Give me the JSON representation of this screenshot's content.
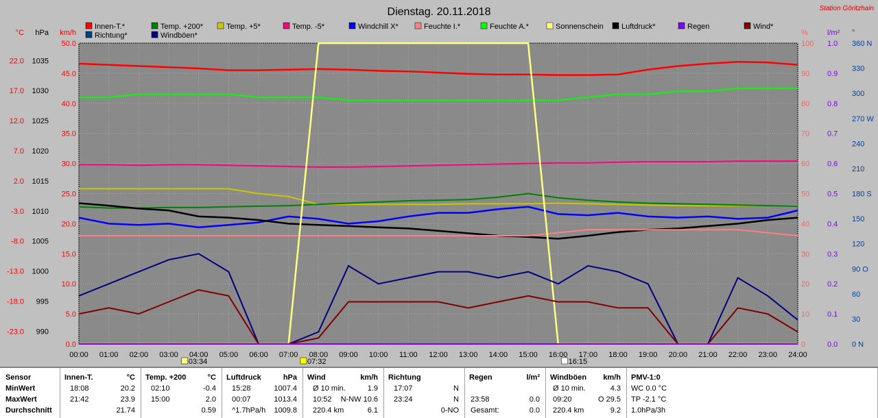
{
  "title": "Dienstag. 20.11.2018",
  "station": "Station Göritzhain",
  "legend": [
    {
      "label": "Innen-T.*",
      "color": "#ff0000"
    },
    {
      "label": "Temp. +200*",
      "color": "#008000"
    },
    {
      "label": "Temp. +5*",
      "color": "#c8c800"
    },
    {
      "label": "Temp. -5*",
      "color": "#ff0080"
    },
    {
      "label": "Windchill X*",
      "color": "#0000ff"
    },
    {
      "label": "Feuchte I.*",
      "color": "#ff8080"
    },
    {
      "label": "Feuchte A.*",
      "color": "#00ff00"
    },
    {
      "label": "Sonnenschein",
      "color": "#ffff80"
    },
    {
      "label": "Luftdruck*",
      "color": "#000000"
    },
    {
      "label": "Regen",
      "color": "#8000ff"
    },
    {
      "label": "Wind*",
      "color": "#800000"
    },
    {
      "label": "Richtung*",
      "color": "#004080"
    },
    {
      "label": "Windböen*",
      "color": "#000080"
    }
  ],
  "axes": {
    "temp": {
      "unit": "°C",
      "ticks": [
        "22.0",
        "17.0",
        "12.0",
        "7.0",
        "2.0",
        "-3.0",
        "-8.0",
        "-13.0",
        "-18.0",
        "-23.0"
      ],
      "color": "#ff0000"
    },
    "pressure": {
      "unit": "hPa",
      "ticks": [
        "1035",
        "1030",
        "1025",
        "1020",
        "1015",
        "1010",
        "1005",
        "1000",
        "995",
        "990"
      ],
      "color": "#000000"
    },
    "wind": {
      "unit": "km/h",
      "ticks": [
        "50.0",
        "45.0",
        "40.0",
        "35.0",
        "30.0",
        "25.0",
        "20.0",
        "15.0",
        "10.0",
        "5.0",
        "0.0"
      ],
      "color": "#ff0000"
    },
    "humidity": {
      "unit": "%",
      "ticks": [
        "100",
        "90",
        "80",
        "70",
        "60",
        "50",
        "40",
        "30",
        "20",
        "10",
        "0"
      ],
      "color": "#ff6060"
    },
    "rain": {
      "unit": "l/m²",
      "ticks": [
        "1.0",
        "0.9",
        "0.8",
        "0.7",
        "0.6",
        "0.5",
        "0.4",
        "0.3",
        "0.2",
        "0.1",
        "0.0"
      ],
      "color": "#8000ff"
    },
    "direction": {
      "unit": "°",
      "ticks": [
        "360 N",
        "330",
        "300",
        "270 W",
        "240",
        "210",
        "180 S",
        "150",
        "120",
        "90 O",
        "60",
        "30",
        "0 N"
      ],
      "color": "#0040a0"
    },
    "x_ticks": [
      "00:00",
      "01:00",
      "02:00",
      "03:00",
      "04:00",
      "05:00",
      "06:00",
      "07:00",
      "08:00",
      "09:00",
      "10:00",
      "11:00",
      "12:00",
      "13:00",
      "14:00",
      "15:00",
      "16:00",
      "17:00",
      "18:00",
      "19:00",
      "20:00",
      "21:00",
      "22:00",
      "23:00",
      "24:00"
    ]
  },
  "markers": {
    "moonset": "03:34",
    "sunrise": "07:32",
    "moonrise": "16:15"
  },
  "chart_data": {
    "type": "line",
    "x": [
      "00:00",
      "01:00",
      "02:00",
      "03:00",
      "04:00",
      "05:00",
      "06:00",
      "07:00",
      "08:00",
      "09:00",
      "10:00",
      "11:00",
      "12:00",
      "13:00",
      "14:00",
      "15:00",
      "16:00",
      "17:00",
      "18:00",
      "19:00",
      "20:00",
      "21:00",
      "22:00",
      "23:00",
      "24:00"
    ],
    "series": [
      {
        "name": "Innen-T.*",
        "axis": "temp",
        "values": [
          23.6,
          23.4,
          23.2,
          23.0,
          22.8,
          22.5,
          22.5,
          22.6,
          22.7,
          22.6,
          22.4,
          22.3,
          22.1,
          21.9,
          21.8,
          21.8,
          21.7,
          21.7,
          21.8,
          22.6,
          23.2,
          23.6,
          23.9,
          23.8,
          23.4
        ]
      },
      {
        "name": "Feuchte A.*",
        "axis": "humidity",
        "values": [
          82,
          82,
          83,
          83,
          83,
          83,
          82,
          82,
          82,
          81,
          81,
          81,
          81,
          81,
          81,
          81,
          81,
          82,
          83,
          83,
          84,
          84,
          85,
          85,
          85
        ]
      },
      {
        "name": "Temp. -5*",
        "axis": "temp",
        "values": [
          6.8,
          6.8,
          6.7,
          6.8,
          6.8,
          6.7,
          6.6,
          6.5,
          6.4,
          6.4,
          6.5,
          6.6,
          6.7,
          6.8,
          6.9,
          7.0,
          7.1,
          7.1,
          7.2,
          7.3,
          7.3,
          7.3,
          7.4,
          7.4,
          7.4
        ]
      },
      {
        "name": "Temp. +5*",
        "axis": "temp",
        "values": [
          2.8,
          2.8,
          2.8,
          2.8,
          2.8,
          2.8,
          2.0,
          1.5,
          0.2,
          0.2,
          0.2,
          0.2,
          0.2,
          0.3,
          0.3,
          0.3,
          0.4,
          0.3,
          0.2,
          0.1,
          0.0,
          0.0,
          0.0,
          0.0,
          0.0
        ]
      },
      {
        "name": "Temp. +200*",
        "axis": "temp",
        "values": [
          -0.2,
          -0.4,
          -0.4,
          -0.3,
          -0.3,
          -0.2,
          -0.1,
          0.0,
          0.2,
          0.4,
          0.6,
          0.8,
          0.9,
          1.0,
          1.4,
          2.0,
          1.3,
          0.9,
          0.6,
          0.4,
          0.3,
          0.2,
          0.1,
          0.0,
          -0.1
        ]
      },
      {
        "name": "Windchill X*",
        "axis": "temp",
        "values": [
          -2.0,
          -3.0,
          -3.2,
          -3.0,
          -3.6,
          -3.2,
          -2.8,
          -1.8,
          -2.2,
          -3.0,
          -2.6,
          -1.8,
          -1.2,
          -1.2,
          -0.6,
          -0.2,
          -1.4,
          -1.6,
          -1.2,
          -1.8,
          -2.0,
          -1.8,
          -2.2,
          -2.0,
          -0.8
        ]
      },
      {
        "name": "Luftdruck*",
        "axis": "pressure",
        "values": [
          1013.4,
          1013.0,
          1012.5,
          1012.2,
          1011.2,
          1011.0,
          1010.6,
          1010.0,
          1009.8,
          1009.6,
          1009.4,
          1009.2,
          1008.8,
          1008.4,
          1008.0,
          1007.8,
          1007.5,
          1008.0,
          1008.6,
          1009.0,
          1009.2,
          1009.6,
          1010.0,
          1010.6,
          1011.0
        ]
      },
      {
        "name": "Feuchte I.*",
        "axis": "humidity",
        "values": [
          36,
          36,
          36,
          36,
          36,
          36,
          36,
          36,
          36,
          36,
          36,
          36,
          36,
          36,
          36,
          36,
          37,
          38,
          38,
          38,
          38,
          38,
          38,
          37,
          36
        ]
      },
      {
        "name": "Sonnenschein",
        "axis": "humidity",
        "values": [
          0,
          0,
          0,
          0,
          0,
          0,
          0,
          0,
          100,
          100,
          100,
          100,
          100,
          100,
          100,
          100,
          0,
          0,
          0,
          0,
          0,
          0,
          0,
          0,
          0
        ]
      },
      {
        "name": "Windböen*",
        "axis": "wind",
        "values": [
          8,
          10,
          12,
          14,
          15,
          12,
          0,
          0,
          2,
          13,
          10,
          11,
          12,
          12,
          11,
          12,
          10,
          13,
          12,
          10,
          0,
          0,
          11,
          8,
          4
        ]
      },
      {
        "name": "Wind*",
        "axis": "wind",
        "values": [
          5,
          6,
          5,
          7,
          9,
          8,
          0,
          0,
          1,
          7,
          7,
          7,
          7,
          6,
          7,
          8,
          7,
          7,
          6,
          6,
          0,
          0,
          6,
          5,
          2
        ]
      },
      {
        "name": "Regen",
        "axis": "rain",
        "values": [
          0,
          0,
          0,
          0,
          0,
          0,
          0,
          0,
          0,
          0,
          0,
          0,
          0,
          0,
          0,
          0,
          0,
          0,
          0,
          0,
          0,
          0,
          0,
          0,
          0
        ]
      }
    ]
  },
  "stats": {
    "sensor": {
      "header": "Sensor",
      "rows": [
        "MinWert",
        "MaxWert",
        "Durchschnitt"
      ]
    },
    "innen": {
      "header": "Innen-T.",
      "unit": "°C",
      "rows": [
        [
          "18:08",
          "20.2"
        ],
        [
          "21:42",
          "23.9"
        ],
        [
          "",
          "21.74"
        ]
      ]
    },
    "temp200": {
      "header": "Temp. +200",
      "unit": "°C",
      "rows": [
        [
          "02:10",
          "-0.4"
        ],
        [
          "15:00",
          "2.0"
        ],
        [
          "",
          "0.59"
        ]
      ]
    },
    "luftdruck": {
      "header": "Luftdruck",
      "unit": "hPa",
      "rows": [
        [
          "15:28",
          "1007.4"
        ],
        [
          "00:07",
          "1013.4"
        ],
        [
          "^1.7hPa/h",
          "1009.8"
        ]
      ]
    },
    "wind": {
      "header": "Wind",
      "unit": "km/h",
      "rows": [
        [
          "Ø 10 min.",
          "1.9"
        ],
        [
          "10:52",
          "N-NW 10.6"
        ],
        [
          "220.4 km",
          "6.1"
        ]
      ]
    },
    "richtung": {
      "header": "Richtung",
      "rows": [
        [
          "17:07",
          "N"
        ],
        [
          "23:24",
          "N"
        ],
        [
          "",
          "0-NO"
        ]
      ]
    },
    "regen": {
      "header": "Regen",
      "unit": "l/m²",
      "rows": [
        [
          "",
          ""
        ],
        [
          "23:58",
          "0.0"
        ],
        [
          "Gesamt:",
          "0.0"
        ]
      ]
    },
    "windboeen": {
      "header": "Windböen",
      "unit": "km/h",
      "rows": [
        [
          "Ø 10 min.",
          "4.3"
        ],
        [
          "09:20",
          "O 29.5"
        ],
        [
          "220.4 km",
          "9.2"
        ]
      ]
    },
    "pmv": {
      "header": "PMV-1:0",
      "rows": [
        "WC 0.0 °C",
        "TP -2.1 °C",
        "1.0hPa/3h"
      ]
    }
  }
}
